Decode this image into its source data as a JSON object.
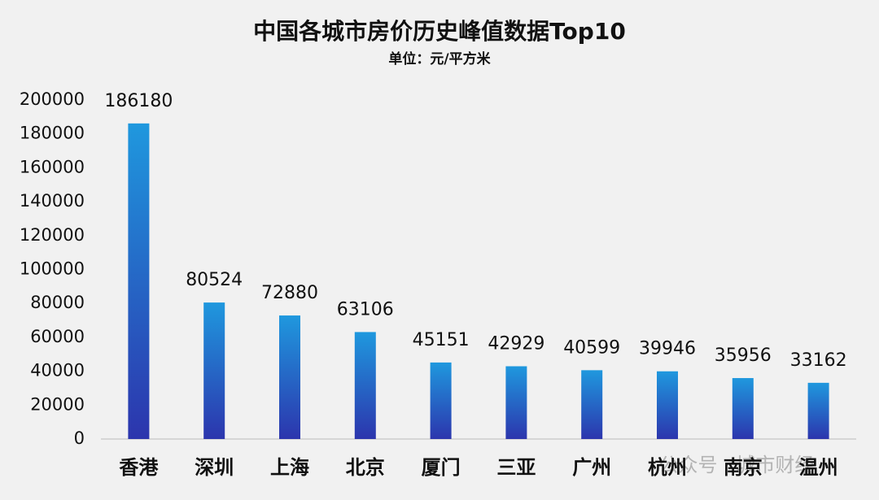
{
  "chart_data": {
    "type": "bar",
    "title": "中国各城市房价历史峰值数据Top10",
    "subtitle": "单位：元/平方米",
    "categories": [
      "香港",
      "深圳",
      "上海",
      "北京",
      "厦门",
      "三亚",
      "广州",
      "杭州",
      "南京",
      "温州"
    ],
    "values": [
      186180,
      80524,
      72880,
      63106,
      45151,
      42929,
      40599,
      39946,
      35956,
      33162
    ],
    "gradient": [
      "#1f98de",
      "#2c35ad"
    ],
    "ylim": [
      0,
      200000
    ],
    "yticks": [
      0,
      20000,
      40000,
      60000,
      80000,
      100000,
      120000,
      140000,
      160000,
      180000,
      200000
    ],
    "grid": false,
    "watermark": "公众号 · 城市财经"
  }
}
